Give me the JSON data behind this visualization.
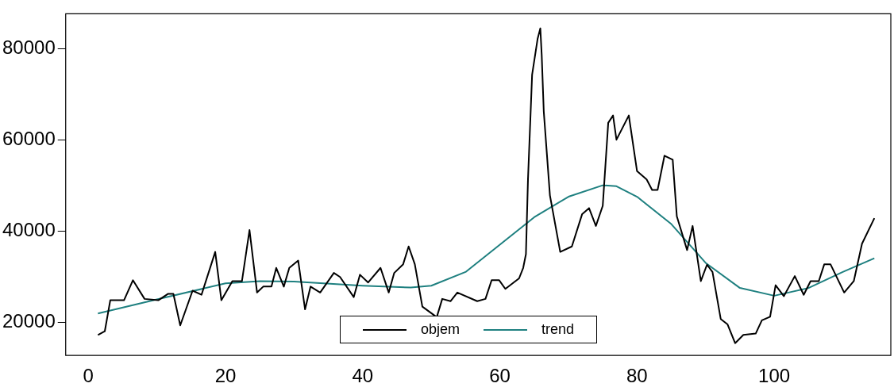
{
  "chart_data": {
    "type": "line",
    "xlim": [
      -3.3,
      117
    ],
    "ylim": [
      12700,
      87600
    ],
    "xticks": [
      0,
      20,
      40,
      60,
      80,
      100
    ],
    "yticks": [
      20000,
      40000,
      60000,
      80000
    ],
    "grid": false,
    "legend": "bottom",
    "marker": "none",
    "series": [
      {
        "name": "objem",
        "color": "#000000",
        "x": [
          1.4,
          2.4,
          3.2,
          5.2,
          6.5,
          8.2,
          10.2,
          11.6,
          12.4,
          13.4,
          15.2,
          16.5,
          18.5,
          19.4,
          21,
          22.4,
          23.5,
          24.6,
          25.5,
          26.7,
          27.4,
          28.5,
          29.3,
          30.6,
          31.6,
          32.4,
          33.8,
          35.8,
          36.7,
          38.7,
          39.6,
          40.8,
          42.6,
          43.8,
          44.6,
          45.9,
          46.7,
          47.6,
          48.7,
          50.8,
          51.6,
          52.8,
          53.8,
          56.7,
          57.9,
          58.8,
          59.9,
          60.8,
          62.8,
          63.4,
          63.8,
          64.1,
          64.7,
          65.5,
          65.9,
          66.1,
          66.4,
          67.3,
          68.8,
          70.5,
          72,
          73,
          74,
          75,
          75.8,
          76.5,
          77,
          78.8,
          80,
          81.4,
          82.2,
          83,
          84,
          85.2,
          85.8,
          87.3,
          88.1,
          89.3,
          90.2,
          91,
          92.2,
          93.2,
          94.3,
          95.5,
          97.3,
          98.2,
          99.4,
          100.2,
          101.4,
          103,
          104.3,
          105.3,
          106.5,
          107.3,
          108.2,
          110.2,
          111.6,
          112.8,
          114.6
        ],
        "values": [
          17200,
          18000,
          24800,
          24800,
          29200,
          25100,
          24800,
          26200,
          26200,
          19300,
          26900,
          26000,
          35400,
          24800,
          29000,
          29000,
          40200,
          26500,
          27800,
          27800,
          31900,
          27800,
          31900,
          33500,
          22800,
          27800,
          26500,
          30800,
          29900,
          25500,
          30400,
          28700,
          31900,
          26500,
          30800,
          32700,
          36600,
          32700,
          23400,
          21100,
          25100,
          24600,
          26500,
          24600,
          25100,
          29200,
          29200,
          27300,
          29600,
          31900,
          34900,
          51300,
          74200,
          82100,
          84400,
          78600,
          66200,
          47800,
          35400,
          36600,
          43700,
          45000,
          41100,
          45500,
          63700,
          65300,
          60000,
          65300,
          53100,
          51300,
          49000,
          49000,
          56500,
          55600,
          43200,
          35800,
          41100,
          29000,
          32600,
          31000,
          20700,
          19500,
          15400,
          17200,
          17500,
          20400,
          21200,
          28100,
          25700,
          30100,
          26000,
          29000,
          29000,
          32700,
          32700,
          26500,
          29000,
          37200,
          42800
        ]
      },
      {
        "name": "trend",
        "color": "#1f8080",
        "x": [
          1.4,
          10,
          20,
          25,
          30,
          40,
          47,
          50,
          55,
          60,
          65,
          70,
          75,
          77,
          80,
          85,
          90,
          95,
          100,
          105,
          110,
          114.6
        ],
        "values": [
          21900,
          25000,
          28500,
          29000,
          28900,
          28000,
          27600,
          28000,
          31000,
          37000,
          43000,
          47500,
          50000,
          49800,
          47500,
          41500,
          33000,
          27500,
          25800,
          27500,
          31000,
          34000
        ]
      }
    ]
  }
}
